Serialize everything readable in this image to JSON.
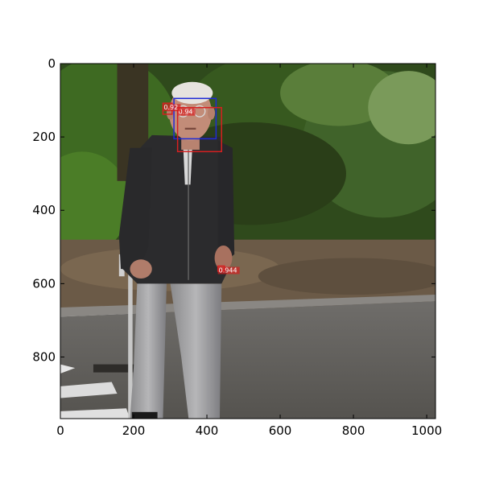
{
  "image": {
    "width": 1024,
    "height": 968,
    "scene": "elderly man walking with a cane on a street in front of trees"
  },
  "axes": {
    "xlim": [
      0,
      1024
    ],
    "ylim": [
      968,
      0
    ],
    "x_ticks": [
      {
        "value": 0,
        "label": "0"
      },
      {
        "value": 200,
        "label": "200"
      },
      {
        "value": 400,
        "label": "400"
      },
      {
        "value": 600,
        "label": "600"
      },
      {
        "value": 800,
        "label": "800"
      },
      {
        "value": 1000,
        "label": "1000"
      }
    ],
    "y_ticks": [
      {
        "value": 0,
        "label": "0"
      },
      {
        "value": 200,
        "label": "200"
      },
      {
        "value": 400,
        "label": "400"
      },
      {
        "value": 600,
        "label": "600"
      },
      {
        "value": 800,
        "label": "800"
      }
    ]
  },
  "detections": [
    {
      "id": "blue-face",
      "color": "#1f2bd6",
      "x0": 310,
      "y0": 95,
      "x1": 425,
      "y1": 205,
      "label": ""
    },
    {
      "id": "red-face",
      "color": "#d62020",
      "x0": 320,
      "y0": 120,
      "x1": 440,
      "y1": 240,
      "label": "0.94"
    },
    {
      "id": "red-small",
      "color": "#d62020",
      "x0": 280,
      "y0": 108,
      "x1": 305,
      "y1": 138,
      "label": "0.92"
    },
    {
      "id": "red-hand",
      "color": "#d62020",
      "x0": 430,
      "y0": 552,
      "x1": 448,
      "y1": 566,
      "label": "0.944"
    }
  ],
  "colors": {
    "frame": "#000000",
    "sky": "#ffffff"
  }
}
